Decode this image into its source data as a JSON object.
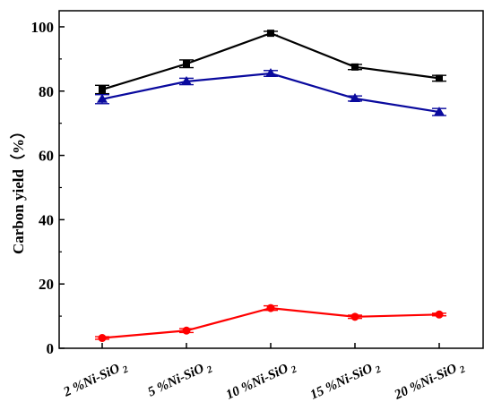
{
  "chart_data": {
    "type": "line",
    "title": "",
    "xlabel": "",
    "ylabel": "Carbon yield（%）",
    "ylim": [
      0,
      105
    ],
    "yticks": [
      0,
      20,
      40,
      60,
      80,
      100
    ],
    "grid": false,
    "categories": [
      {
        "main": "2 %Ni-SiO",
        "sub": "2"
      },
      {
        "main": "5 %Ni-SiO",
        "sub": "2"
      },
      {
        "main": "10 %Ni-SiO",
        "sub": "2"
      },
      {
        "main": "15 %Ni-SiO",
        "sub": "2"
      },
      {
        "main": "20 %Ni-SiO",
        "sub": "2"
      }
    ],
    "series": [
      {
        "marker": "square",
        "color": "#000000",
        "values": [
          80.5,
          88.5,
          98.0,
          87.5,
          84.0
        ],
        "errors": [
          1.3,
          1.2,
          0.6,
          0.8,
          0.9
        ]
      },
      {
        "marker": "triangle",
        "color": "#0a0a9e",
        "values": [
          77.5,
          83.0,
          85.5,
          77.7,
          73.5
        ],
        "errors": [
          1.4,
          1.0,
          0.9,
          0.8,
          1.1
        ]
      },
      {
        "marker": "circle",
        "color": "#ff0000",
        "values": [
          3.2,
          5.5,
          12.5,
          9.8,
          10.5
        ],
        "errors": [
          0.4,
          0.6,
          0.7,
          0.5,
          0.4
        ]
      }
    ]
  }
}
